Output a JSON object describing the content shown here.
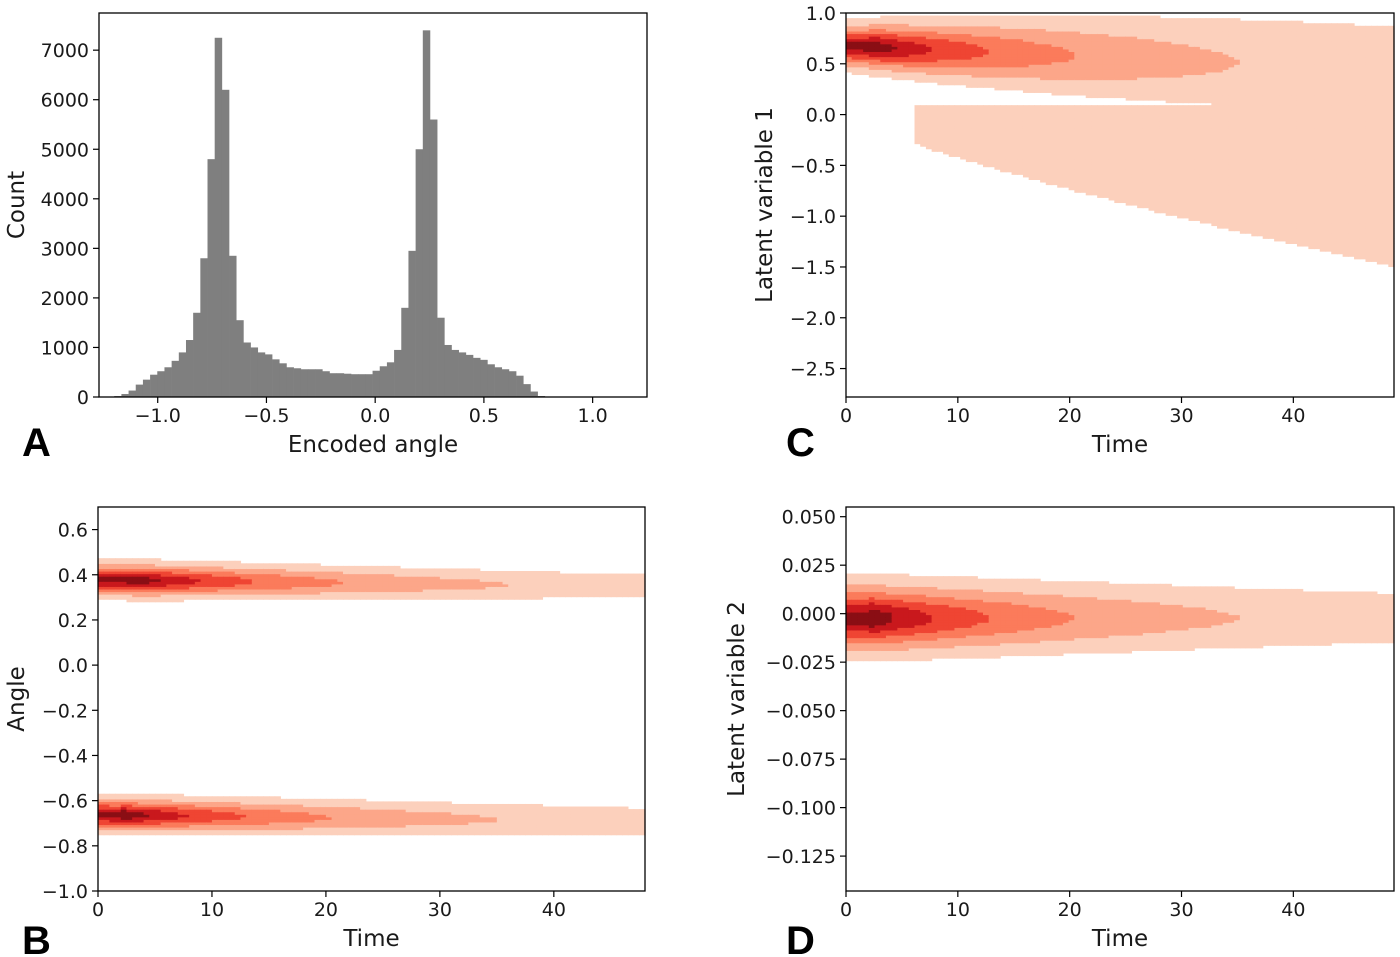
{
  "panels": [
    {
      "id": "A",
      "label": "A"
    },
    {
      "id": "B",
      "label": "B"
    },
    {
      "id": "C",
      "label": "C"
    },
    {
      "id": "D",
      "label": "D"
    }
  ],
  "chart_data": [
    {
      "panel": "A",
      "type": "bar",
      "title": "",
      "xlabel": "Encoded angle",
      "ylabel": "Count",
      "xlim": [
        -1.27,
        1.25
      ],
      "ylim": [
        0,
        7750
      ],
      "xticks": [
        -1.0,
        -0.5,
        0.0,
        0.5,
        1.0
      ],
      "xtick_labels": [
        "−1.0",
        "−0.5",
        "0.0",
        "0.5",
        "1.0"
      ],
      "yticks": [
        0,
        1000,
        2000,
        3000,
        4000,
        5000,
        6000,
        7000
      ],
      "ytick_labels": [
        "0",
        "1000",
        "2000",
        "3000",
        "4000",
        "5000",
        "6000",
        "7000"
      ],
      "color": "#7f7f7f",
      "bin_start": -1.2,
      "bin_width": 0.033,
      "values": [
        20,
        60,
        130,
        250,
        350,
        450,
        520,
        600,
        730,
        900,
        1150,
        1700,
        2800,
        4800,
        7250,
        6200,
        2850,
        1550,
        1100,
        1000,
        900,
        860,
        760,
        680,
        600,
        580,
        560,
        560,
        560,
        520,
        480,
        480,
        470,
        460,
        460,
        460,
        530,
        620,
        700,
        950,
        1800,
        2950,
        5000,
        7400,
        5600,
        1600,
        1050,
        950,
        900,
        850,
        790,
        750,
        660,
        600,
        560,
        520,
        430,
        260,
        110,
        20
      ]
    },
    {
      "panel": "B",
      "type": "heatmap",
      "title": "",
      "xlabel": "Time",
      "ylabel": "Angle",
      "xlim": [
        0,
        48
      ],
      "ylim": [
        -1.0,
        0.7
      ],
      "xticks": [
        0,
        10,
        20,
        30,
        40
      ],
      "xtick_labels": [
        "0",
        "10",
        "20",
        "30",
        "40"
      ],
      "yticks": [
        -1.0,
        -0.8,
        -0.6,
        -0.4,
        -0.2,
        0.0,
        0.2,
        0.4,
        0.6
      ],
      "ytick_labels": [
        "−1.0",
        "−0.8",
        "−0.6",
        "−0.4",
        "−0.2",
        "0.0",
        "0.2",
        "0.4",
        "0.6"
      ],
      "colormap": "Reds",
      "bands": [
        {
          "center": 0.38,
          "center_end": 0.35,
          "half_width": 0.07,
          "half_width_end": 0.07,
          "peak_time": 3
        },
        {
          "center": -0.66,
          "center_end": -0.69,
          "half_width": 0.07,
          "half_width_end": 0.08,
          "peak_time": 2
        }
      ]
    },
    {
      "panel": "C",
      "type": "heatmap",
      "title": "",
      "xlabel": "Time",
      "ylabel": "Latent variable 1",
      "xlim": [
        0,
        49
      ],
      "ylim": [
        -2.78,
        1.0
      ],
      "xticks": [
        0,
        10,
        20,
        30,
        40
      ],
      "xtick_labels": [
        "0",
        "10",
        "20",
        "30",
        "40"
      ],
      "yticks": [
        -2.5,
        -2.0,
        -1.5,
        -1.0,
        -0.5,
        0.0,
        0.5,
        1.0
      ],
      "ytick_labels": [
        "−2.5",
        "−2.0",
        "−1.5",
        "−1.0",
        "−0.5",
        "0.0",
        "0.5",
        "1.0"
      ],
      "colormap": "Reds",
      "bands": [
        {
          "center": 0.68,
          "center_end": 0.45,
          "half_width": 0.2,
          "half_width_end": 0.6,
          "peak_time": 2
        }
      ],
      "tail": {
        "top": 0.1,
        "bottom_start": 0.0,
        "bottom_end": -1.5
      }
    },
    {
      "panel": "D",
      "type": "heatmap",
      "title": "",
      "xlabel": "Time",
      "ylabel": "Latent variable 2",
      "xlim": [
        0,
        49
      ],
      "ylim": [
        -0.143,
        0.055
      ],
      "xticks": [
        0,
        10,
        20,
        30,
        40
      ],
      "xtick_labels": [
        "0",
        "10",
        "20",
        "30",
        "40"
      ],
      "yticks": [
        -0.125,
        -0.1,
        -0.075,
        -0.05,
        -0.025,
        0.0,
        0.025,
        0.05
      ],
      "ytick_labels": [
        "−0.125",
        "−0.100",
        "−0.075",
        "−0.050",
        "−0.025",
        "0.000",
        "0.025",
        "0.050"
      ],
      "colormap": "Reds",
      "bands": [
        {
          "center": -0.002,
          "center_end": -0.002,
          "half_width": 0.017,
          "half_width_end": 0.018,
          "peak_time": 2
        }
      ]
    }
  ],
  "colors": {
    "levels": [
      "#fcd0bc",
      "#fca689",
      "#fb7b5b",
      "#ef4533",
      "#c9181d",
      "#8a0e14"
    ],
    "axis": "#000000"
  }
}
